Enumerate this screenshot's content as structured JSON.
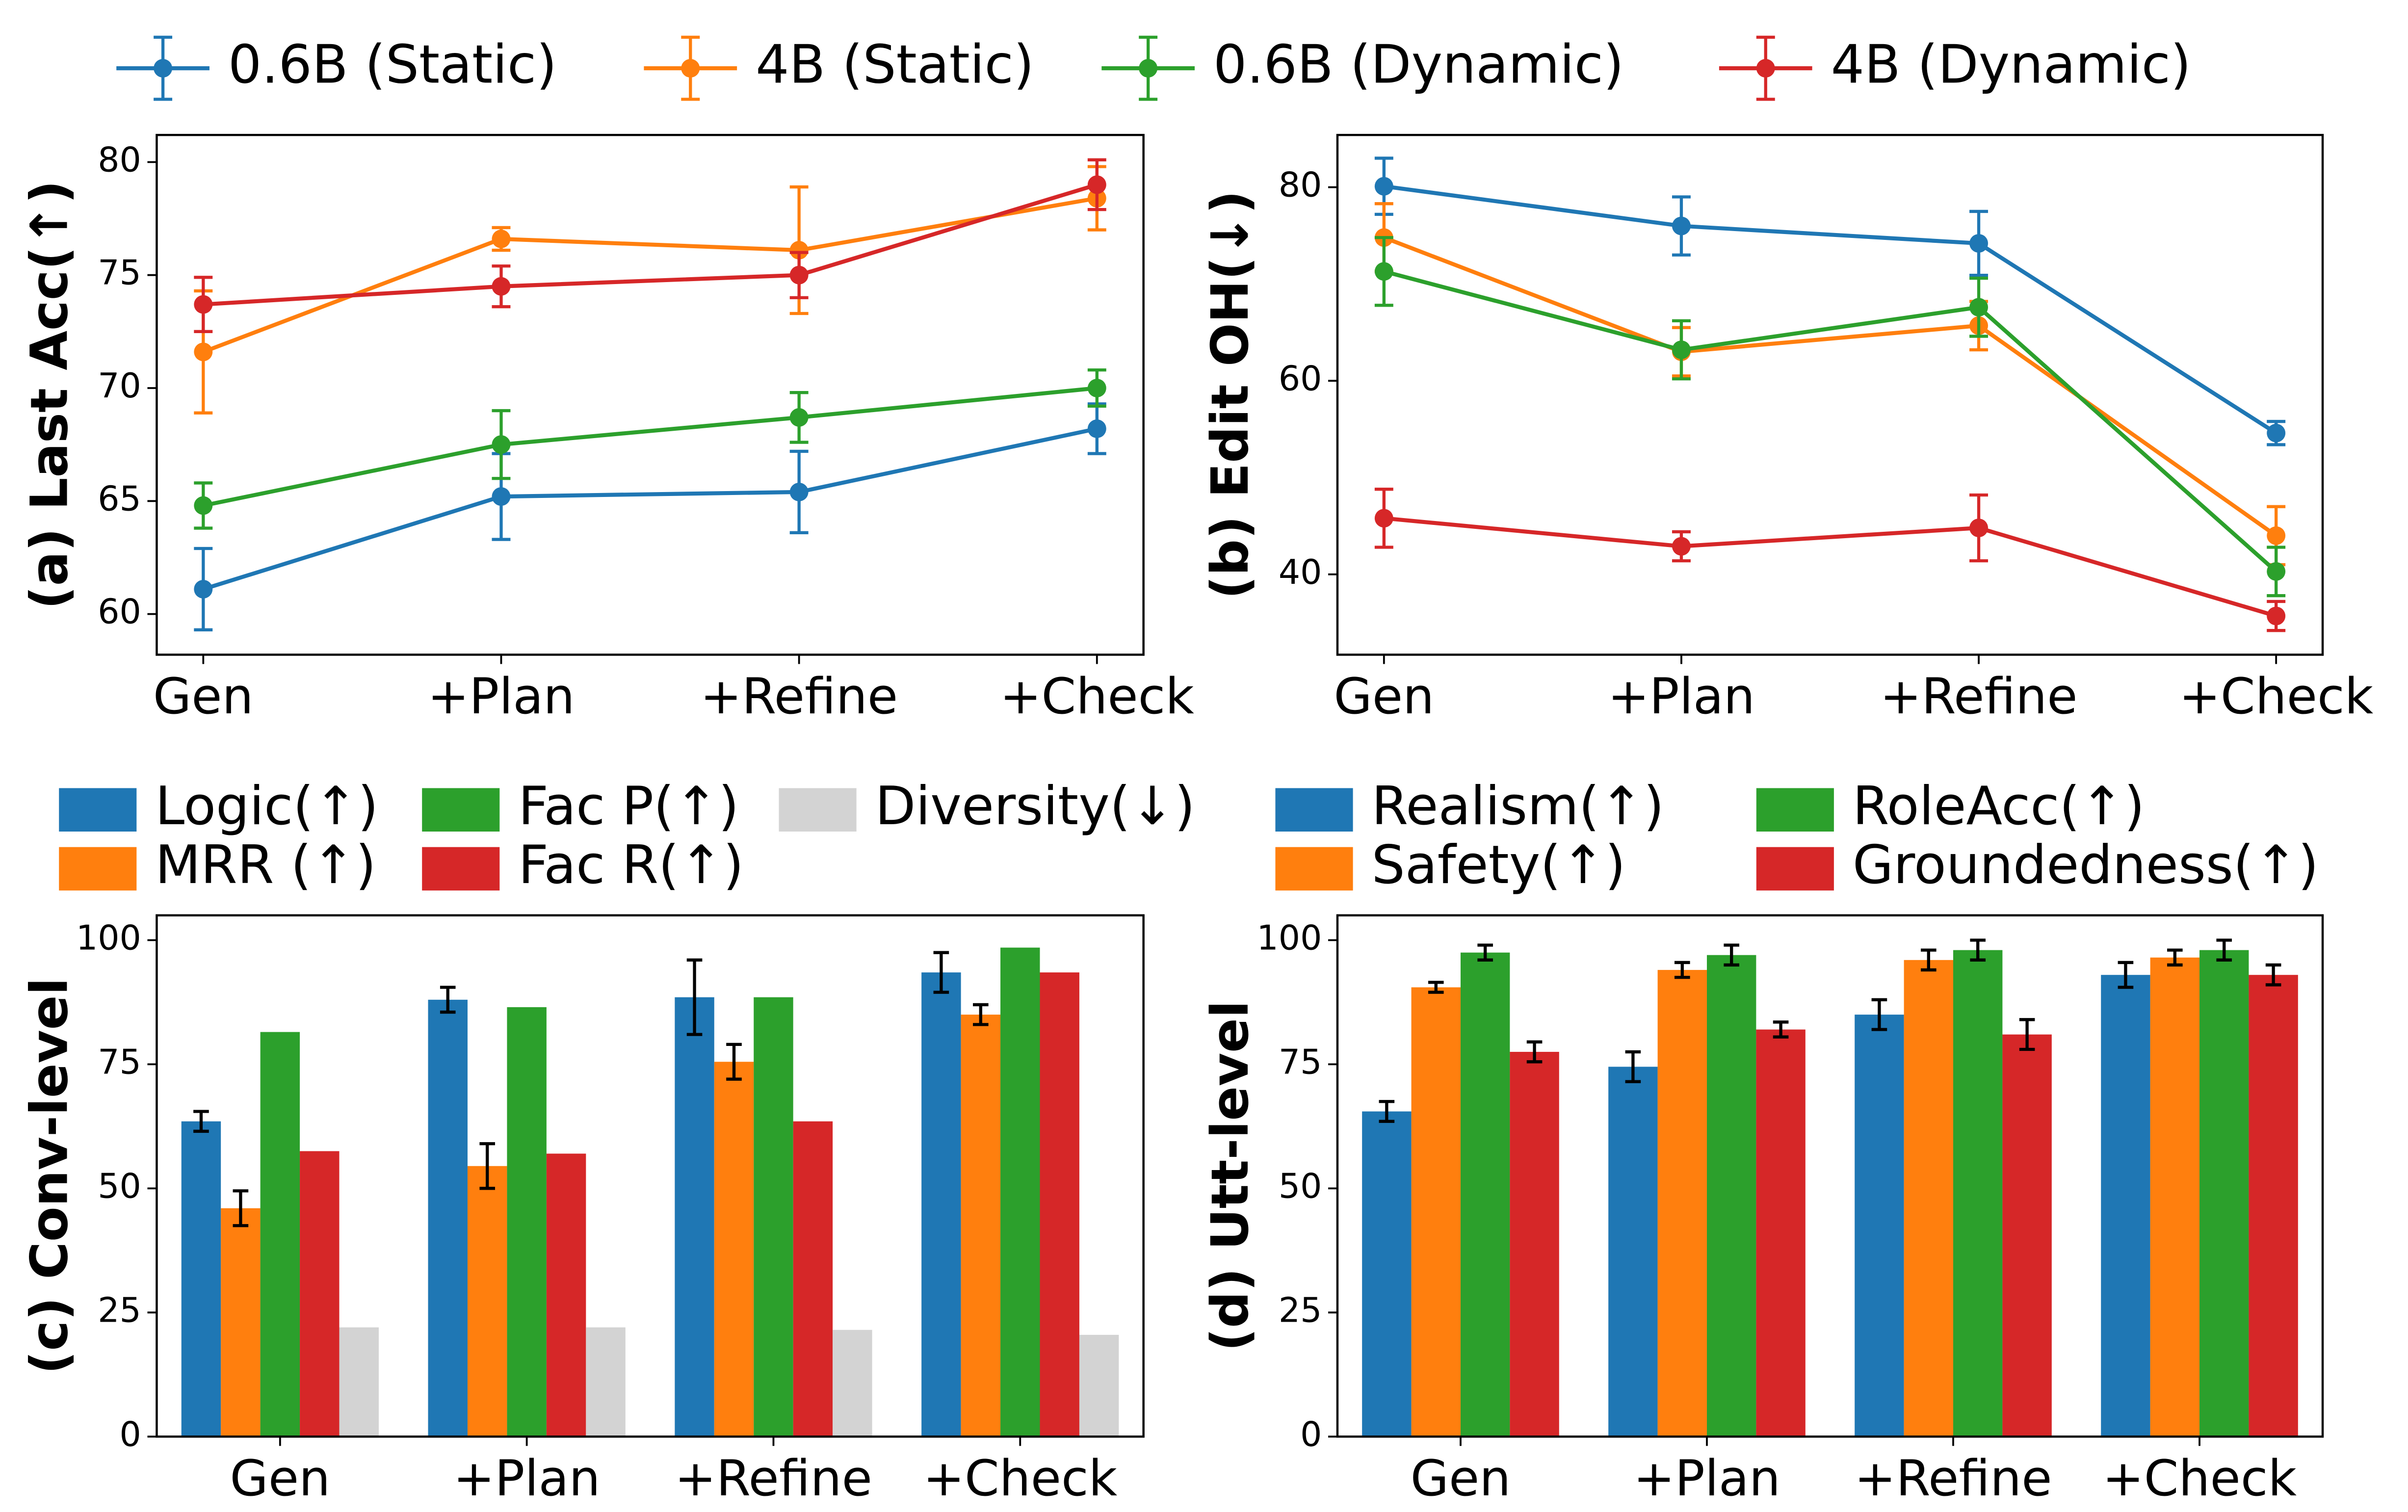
{
  "chart_data": [
    {
      "type": "line",
      "y_label": "(a) Last Acc(↑)",
      "categories": [
        "Gen",
        "+Plan",
        "+Refine",
        "+Check"
      ],
      "ylim": [
        58.2,
        81.2
      ],
      "yticks": [
        60,
        65,
        70,
        75,
        80
      ],
      "series": [
        {
          "name": "0.6B (Static)",
          "color": "#1f77b4",
          "values": [
            61.1,
            65.2,
            65.4,
            68.2
          ],
          "errors": [
            1.8,
            1.9,
            1.8,
            1.1
          ]
        },
        {
          "name": "4B (Static)",
          "color": "#ff7f0e",
          "values": [
            71.6,
            76.6,
            76.1,
            78.4
          ],
          "errors": [
            2.7,
            0.5,
            2.8,
            1.4
          ]
        },
        {
          "name": "0.6B (Dynamic)",
          "color": "#2ca02c",
          "values": [
            64.8,
            67.5,
            68.7,
            70.0
          ],
          "errors": [
            1.0,
            1.5,
            1.1,
            0.8
          ]
        },
        {
          "name": "4B (Dynamic)",
          "color": "#d62728",
          "values": [
            73.7,
            74.5,
            75.0,
            79.0
          ],
          "errors": [
            1.2,
            0.9,
            1.0,
            1.1
          ]
        }
      ]
    },
    {
      "type": "line",
      "y_label": "(b) Edit OH(↓)",
      "categories": [
        "Gen",
        "+Plan",
        "+Refine",
        "+Check"
      ],
      "ylim": [
        31.7,
        85.4
      ],
      "yticks": [
        40,
        60,
        80
      ],
      "series": [
        {
          "color": "#1f77b4",
          "values": [
            80.1,
            76.0,
            74.2,
            54.6
          ],
          "errors": [
            2.9,
            3.0,
            3.3,
            1.2
          ]
        },
        {
          "color": "#ff7f0e",
          "values": [
            74.8,
            63.0,
            65.7,
            44.0
          ],
          "errors": [
            3.5,
            2.5,
            2.5,
            3.0
          ]
        },
        {
          "color": "#2ca02c",
          "values": [
            71.3,
            63.2,
            67.6,
            40.3
          ],
          "errors": [
            3.5,
            3.0,
            3.0,
            2.5
          ]
        },
        {
          "color": "#d62728",
          "values": [
            45.8,
            42.9,
            44.8,
            35.7
          ],
          "errors": [
            3.0,
            1.5,
            3.4,
            1.5
          ]
        }
      ]
    },
    {
      "type": "bar",
      "y_label": "(c) Conv-level",
      "categories": [
        "Gen",
        "+Plan",
        "+Refine",
        "+Check"
      ],
      "ylim": [
        0,
        105
      ],
      "yticks": [
        0,
        25,
        50,
        75,
        100
      ],
      "series": [
        {
          "name": "Logic(↑)",
          "color": "#1f77b4",
          "values": [
            63.5,
            88,
            88.5,
            93.5
          ],
          "errors": [
            2,
            2.5,
            7.5,
            4
          ]
        },
        {
          "name": "MRR (↑)",
          "color": "#ff7f0e",
          "values": [
            46,
            54.5,
            75.5,
            85
          ],
          "errors": [
            3.5,
            4.5,
            3.5,
            2
          ]
        },
        {
          "name": "Fac P(↑)",
          "color": "#2ca02c",
          "values": [
            81.5,
            86.5,
            88.5,
            98.5
          ]
        },
        {
          "name": "Fac R(↑)",
          "color": "#d62728",
          "values": [
            57.5,
            57,
            63.5,
            93.5
          ]
        },
        {
          "name": "Diversity(↓)",
          "color": "#d3d3d3",
          "values": [
            22,
            22,
            21.5,
            20.5
          ]
        }
      ]
    },
    {
      "type": "bar",
      "y_label": "(d) Utt-level",
      "categories": [
        "Gen",
        "+Plan",
        "+Refine",
        "+Check"
      ],
      "ylim": [
        0,
        105
      ],
      "yticks": [
        0,
        25,
        50,
        75,
        100
      ],
      "series": [
        {
          "name": "Realism(↑)",
          "color": "#1f77b4",
          "values": [
            65.5,
            74.5,
            85,
            93
          ],
          "errors": [
            2,
            3,
            3,
            2.5
          ]
        },
        {
          "name": "Safety(↑)",
          "color": "#ff7f0e",
          "values": [
            90.5,
            94,
            96,
            96.5
          ],
          "errors": [
            1,
            1.5,
            2,
            1.5
          ]
        },
        {
          "name": "RoleAcc(↑)",
          "color": "#2ca02c",
          "values": [
            97.5,
            97,
            98,
            98
          ],
          "errors": [
            1.5,
            2,
            2,
            2
          ]
        },
        {
          "name": "Groundedness(↑)",
          "color": "#d62728",
          "values": [
            77.5,
            82,
            81,
            93
          ],
          "errors": [
            2,
            1.5,
            3,
            2
          ]
        }
      ]
    }
  ]
}
